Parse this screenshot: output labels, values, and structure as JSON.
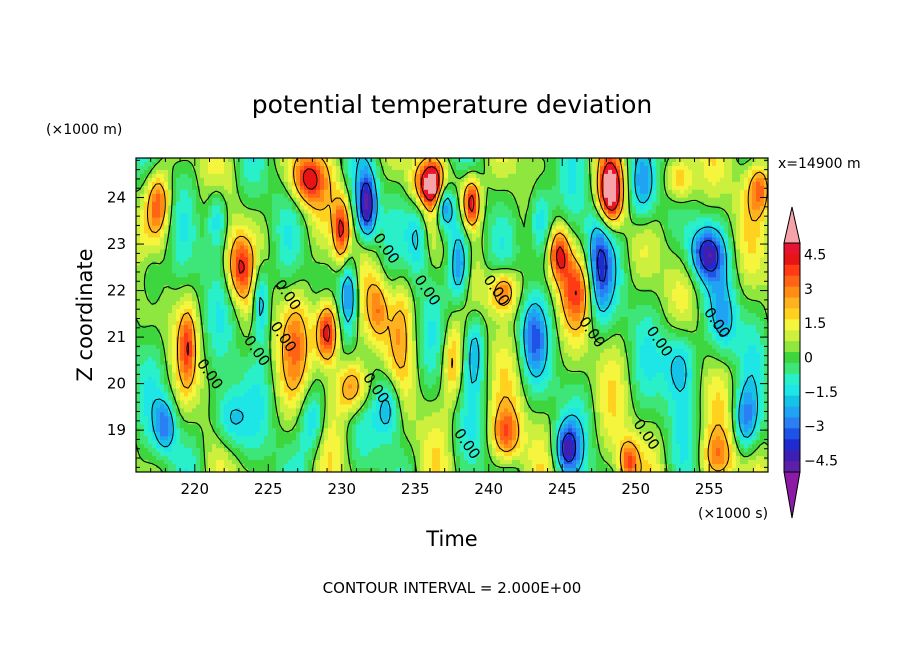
{
  "chart_data": {
    "type": "heatmap",
    "title": "potential temperature deviation",
    "xlabel": "Time",
    "ylabel": "Z coordinate",
    "x_unit_label": "(×1000 s)",
    "y_unit_label": "(×1000 m)",
    "annotation": "x=14900 m",
    "footer": "CONTOUR INTERVAL = 2.000E+00",
    "xlim": [
      216,
      259
    ],
    "ylim": [
      18.1,
      24.85
    ],
    "x_ticks": [
      220,
      225,
      230,
      235,
      240,
      245,
      250,
      255
    ],
    "x_tick_labels": [
      "220",
      "225",
      "230",
      "235",
      "240",
      "245",
      "250",
      "255"
    ],
    "y_ticks": [
      19,
      20,
      21,
      22,
      23,
      24
    ],
    "y_tick_labels": [
      "19",
      "20",
      "21",
      "22",
      "23",
      "24"
    ],
    "contour_interval": 2.0,
    "contour_labels": [
      {
        "text": "0.00",
        "x": 233.0,
        "y": 22.9
      },
      {
        "text": "0.00",
        "x": 226.3,
        "y": 21.9
      },
      {
        "text": "0.00",
        "x": 224.2,
        "y": 20.7
      },
      {
        "text": "0.00",
        "x": 226.0,
        "y": 21.0
      },
      {
        "text": "0.00",
        "x": 221.0,
        "y": 20.2
      },
      {
        "text": "0.00",
        "x": 232.3,
        "y": 19.9
      },
      {
        "text": "0.00",
        "x": 235.8,
        "y": 22.0
      },
      {
        "text": "0.00",
        "x": 240.5,
        "y": 22.0
      },
      {
        "text": "0.00",
        "x": 238.5,
        "y": 18.7
      },
      {
        "text": "0.00",
        "x": 247.0,
        "y": 21.1
      },
      {
        "text": "0.00",
        "x": 250.7,
        "y": 18.9
      },
      {
        "text": "0.00",
        "x": 251.6,
        "y": 20.9
      },
      {
        "text": "0.00",
        "x": 255.5,
        "y": 21.3
      }
    ],
    "features": [
      {
        "x": 236.4,
        "y": 24.3,
        "amp": 6.0,
        "sx": 0.9,
        "sy": 0.35
      },
      {
        "x": 237.0,
        "y": 24.0,
        "amp": -5.5,
        "sx": 0.45,
        "sy": 0.45
      },
      {
        "x": 238.8,
        "y": 23.9,
        "amp": 5.5,
        "sx": 0.45,
        "sy": 0.4
      },
      {
        "x": 248.3,
        "y": 24.1,
        "amp": 6.5,
        "sx": 0.6,
        "sy": 0.5
      },
      {
        "x": 229.0,
        "y": 21.1,
        "amp": 6.0,
        "sx": 0.55,
        "sy": 0.5
      },
      {
        "x": 230.0,
        "y": 23.3,
        "amp": 4.0,
        "sx": 0.4,
        "sy": 0.5
      },
      {
        "x": 227.6,
        "y": 24.4,
        "amp": 4.0,
        "sx": 0.8,
        "sy": 0.4
      },
      {
        "x": 217.5,
        "y": 23.9,
        "amp": 3.5,
        "sx": 0.6,
        "sy": 0.5
      },
      {
        "x": 223.0,
        "y": 22.5,
        "amp": 3.5,
        "sx": 0.6,
        "sy": 0.5
      },
      {
        "x": 230.8,
        "y": 19.9,
        "amp": 3.5,
        "sx": 0.8,
        "sy": 0.4
      },
      {
        "x": 232.5,
        "y": 21.6,
        "amp": 2.5,
        "sx": 0.5,
        "sy": 0.5
      },
      {
        "x": 241.0,
        "y": 22.0,
        "amp": 4.0,
        "sx": 0.7,
        "sy": 0.35
      },
      {
        "x": 244.8,
        "y": 22.8,
        "amp": 4.0,
        "sx": 0.5,
        "sy": 0.4
      },
      {
        "x": 246.0,
        "y": 22.0,
        "amp": 2.5,
        "sx": 0.8,
        "sy": 0.5
      },
      {
        "x": 253.0,
        "y": 24.4,
        "amp": 3.5,
        "sx": 0.7,
        "sy": 0.4
      },
      {
        "x": 258.5,
        "y": 24.2,
        "amp": 3.0,
        "sx": 0.6,
        "sy": 0.4
      },
      {
        "x": 237.5,
        "y": 20.4,
        "amp": 2.5,
        "sx": 0.5,
        "sy": 0.6
      },
      {
        "x": 241.2,
        "y": 18.9,
        "amp": 3.0,
        "sx": 0.7,
        "sy": 0.4
      },
      {
        "x": 249.5,
        "y": 18.3,
        "amp": 3.5,
        "sx": 0.5,
        "sy": 0.35
      },
      {
        "x": 255.6,
        "y": 18.4,
        "amp": 2.5,
        "sx": 0.8,
        "sy": 0.4
      },
      {
        "x": 219.5,
        "y": 20.8,
        "amp": 2.5,
        "sx": 0.4,
        "sy": 0.6
      },
      {
        "x": 234.0,
        "y": 21.5,
        "amp": 2.0,
        "sx": 0.6,
        "sy": 0.8
      },
      {
        "x": 227.0,
        "y": 21.0,
        "amp": 2.0,
        "sx": 0.8,
        "sy": 0.8
      },
      {
        "x": 231.7,
        "y": 23.8,
        "amp": -5.0,
        "sx": 0.45,
        "sy": 0.5
      },
      {
        "x": 230.5,
        "y": 21.9,
        "amp": -4.0,
        "sx": 0.45,
        "sy": 0.6
      },
      {
        "x": 233.2,
        "y": 19.5,
        "amp": -3.0,
        "sx": 0.6,
        "sy": 0.5
      },
      {
        "x": 238.0,
        "y": 22.5,
        "amp": -4.0,
        "sx": 0.5,
        "sy": 0.6
      },
      {
        "x": 239.0,
        "y": 20.8,
        "amp": -3.0,
        "sx": 0.5,
        "sy": 0.6
      },
      {
        "x": 243.5,
        "y": 23.5,
        "amp": -3.5,
        "sx": 0.6,
        "sy": 0.6
      },
      {
        "x": 247.5,
        "y": 22.5,
        "amp": -3.5,
        "sx": 0.6,
        "sy": 0.8
      },
      {
        "x": 250.5,
        "y": 24.2,
        "amp": -4.0,
        "sx": 0.7,
        "sy": 0.6
      },
      {
        "x": 254.8,
        "y": 22.8,
        "amp": -4.0,
        "sx": 0.8,
        "sy": 0.4
      },
      {
        "x": 253.0,
        "y": 20.5,
        "amp": -3.0,
        "sx": 0.8,
        "sy": 0.6
      },
      {
        "x": 245.3,
        "y": 18.6,
        "amp": -4.0,
        "sx": 0.6,
        "sy": 0.4
      },
      {
        "x": 243.0,
        "y": 21.0,
        "amp": -2.5,
        "sx": 0.6,
        "sy": 0.6
      },
      {
        "x": 224.5,
        "y": 21.8,
        "amp": -3.5,
        "sx": 0.4,
        "sy": 0.6
      },
      {
        "x": 221.5,
        "y": 23.6,
        "amp": -3.0,
        "sx": 0.5,
        "sy": 0.5
      },
      {
        "x": 222.3,
        "y": 19.2,
        "amp": -3.0,
        "sx": 0.8,
        "sy": 0.5
      },
      {
        "x": 218.0,
        "y": 19.1,
        "amp": -3.0,
        "sx": 0.5,
        "sy": 0.4
      },
      {
        "x": 217.0,
        "y": 22.3,
        "amp": -2.0,
        "sx": 0.6,
        "sy": 0.5
      },
      {
        "x": 228.0,
        "y": 19.2,
        "amp": -2.5,
        "sx": 0.6,
        "sy": 0.5
      },
      {
        "x": 235.2,
        "y": 23.2,
        "amp": -2.5,
        "sx": 0.5,
        "sy": 0.6
      },
      {
        "x": 257.5,
        "y": 19.2,
        "amp": -3.0,
        "sx": 0.6,
        "sy": 0.5
      },
      {
        "x": 256.0,
        "y": 21.3,
        "amp": -2.0,
        "sx": 0.7,
        "sy": 0.6
      }
    ],
    "colorbar": {
      "levels": [
        -5.5,
        -5,
        -4.5,
        -4,
        -3.5,
        -3,
        -2.5,
        -2,
        -1.5,
        -1,
        -0.5,
        0,
        0.5,
        1,
        1.5,
        2,
        2.5,
        3,
        3.5,
        4,
        4.5,
        5,
        5.5
      ],
      "colors": [
        "#8c1aa6",
        "#5b1fa8",
        "#3e1fb3",
        "#1f2bd1",
        "#1f52e6",
        "#2a7ff2",
        "#1fa3f2",
        "#14c3e6",
        "#1fe6e6",
        "#29f0c8",
        "#3ee67a",
        "#3ed63e",
        "#8ee63e",
        "#cdf03e",
        "#f5f53e",
        "#ffd21f",
        "#ffb21f",
        "#ff8c14",
        "#ff6414",
        "#ff3a14",
        "#e61414",
        "#e61430",
        "#f5a3a8"
      ],
      "tick_labels": [
        "4.5",
        "3",
        "1.5",
        "0",
        "−1.5",
        "−3",
        "−4.5"
      ],
      "tick_values": [
        4.5,
        3,
        1.5,
        0,
        -1.5,
        -3,
        -4.5
      ]
    }
  }
}
